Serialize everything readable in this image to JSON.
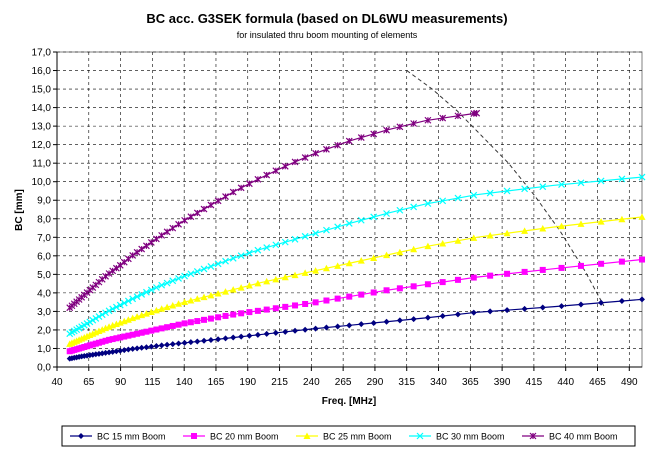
{
  "chart_data": {
    "type": "line",
    "title": "BC acc. G3SEK formula (based on DL6WU measurements)",
    "subtitle": "for insulated thru boom mounting of elements",
    "xlabel": "Freq. [MHz]",
    "ylabel": "BC [mm]",
    "xlim": [
      40,
      500
    ],
    "ylim": [
      0,
      17
    ],
    "x_ticks": [
      "40",
      "65",
      "90",
      "115",
      "140",
      "165",
      "190",
      "215",
      "240",
      "265",
      "290",
      "315",
      "340",
      "365",
      "390",
      "415",
      "440",
      "465",
      "490"
    ],
    "y_ticks": [
      "0,0",
      "1,0",
      "2,0",
      "3,0",
      "4,0",
      "5,0",
      "6,0",
      "7,0",
      "8,0",
      "9,0",
      "10,0",
      "11,0",
      "12,0",
      "13,0",
      "14,0",
      "15,0",
      "16,0",
      "17,0"
    ],
    "grid": true,
    "legend_position": "bottom",
    "series": [
      {
        "name": "BC 15 mm Boom",
        "color": "#000080",
        "marker": "diamond",
        "x": [
          50,
          60,
          70,
          80,
          90,
          100,
          120,
          140,
          160,
          180,
          200,
          220,
          240,
          270,
          300,
          330,
          370,
          430,
          500
        ],
        "y": [
          0.45,
          0.58,
          0.68,
          0.78,
          0.88,
          0.98,
          1.15,
          1.3,
          1.45,
          1.6,
          1.75,
          1.9,
          2.05,
          2.25,
          2.45,
          2.65,
          2.95,
          3.25,
          3.65
        ]
      },
      {
        "name": "BC 20 mm Boom",
        "color": "#ff00ff",
        "marker": "square",
        "x": [
          50,
          60,
          70,
          80,
          90,
          100,
          120,
          140,
          160,
          180,
          200,
          220,
          240,
          270,
          300,
          330,
          370,
          430,
          500
        ],
        "y": [
          0.85,
          1.05,
          1.25,
          1.45,
          1.6,
          1.75,
          2.05,
          2.35,
          2.6,
          2.85,
          3.05,
          3.25,
          3.45,
          3.8,
          4.15,
          4.45,
          4.85,
          5.3,
          5.8
        ]
      },
      {
        "name": "BC 25 mm Boom",
        "color": "#ffff00",
        "marker": "triangle",
        "x": [
          50,
          60,
          70,
          80,
          90,
          100,
          120,
          140,
          160,
          180,
          200,
          220,
          240,
          270,
          300,
          330,
          370,
          430,
          500
        ],
        "y": [
          1.25,
          1.55,
          1.85,
          2.15,
          2.4,
          2.65,
          3.1,
          3.5,
          3.85,
          4.2,
          4.55,
          4.85,
          5.15,
          5.6,
          6.05,
          6.5,
          7.0,
          7.55,
          8.1
        ]
      },
      {
        "name": "BC 30 mm Boom",
        "color": "#00ffff",
        "marker": "x",
        "x": [
          50,
          60,
          70,
          80,
          90,
          100,
          120,
          140,
          160,
          180,
          200,
          220,
          240,
          270,
          300,
          330,
          370,
          430,
          500
        ],
        "y": [
          1.8,
          2.2,
          2.6,
          3.0,
          3.35,
          3.7,
          4.35,
          4.9,
          5.4,
          5.9,
          6.35,
          6.75,
          7.15,
          7.75,
          8.3,
          8.8,
          9.3,
          9.8,
          10.25
        ]
      },
      {
        "name": "BC 40 mm Boom",
        "color": "#800080",
        "marker": "star",
        "x": [
          50,
          60,
          70,
          80,
          90,
          100,
          120,
          140,
          160,
          180,
          200,
          220,
          240,
          270,
          300,
          330,
          370
        ],
        "y": [
          3.2,
          3.8,
          4.4,
          5.0,
          5.5,
          6.05,
          7.0,
          7.9,
          8.7,
          9.5,
          10.2,
          10.85,
          11.45,
          12.2,
          12.8,
          13.3,
          13.7
        ]
      }
    ],
    "annotations": [
      {
        "type": "dashed-curve",
        "color": "#333333",
        "x": [
          315,
          335,
          355,
          375,
          395,
          415,
          435,
          455,
          470
        ],
        "y": [
          16.0,
          15.0,
          13.8,
          12.4,
          11.0,
          9.3,
          7.4,
          5.2,
          3.3
        ]
      }
    ]
  }
}
